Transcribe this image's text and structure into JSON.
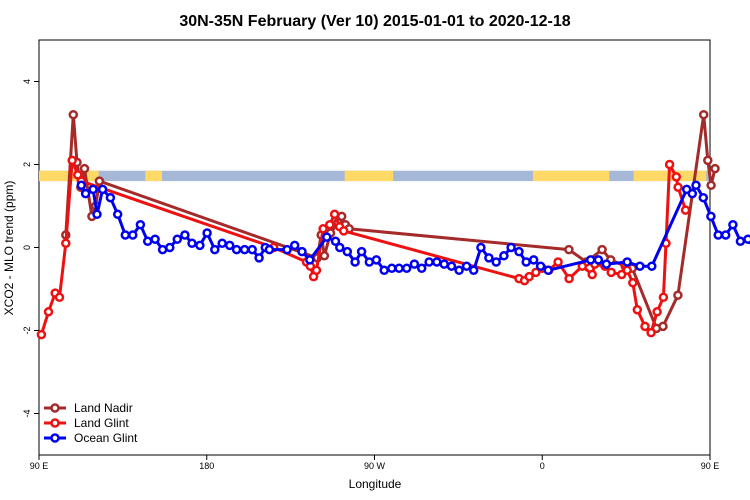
{
  "chart_data": {
    "type": "line",
    "title": "30N-35N February (Ver 10)   2015-01-01 to 2020-12-18",
    "xlabel": "Longitude",
    "ylabel": "XCO2 - MLO trend (ppm)",
    "xlim": [
      90,
      450
    ],
    "ylim": [
      -5,
      5
    ],
    "x_ticks": [
      {
        "value": 90,
        "label": "90 E"
      },
      {
        "value": 180,
        "label": "180"
      },
      {
        "value": 270,
        "label": "90 W"
      },
      {
        "value": 360,
        "label": "0"
      },
      {
        "value": 450,
        "label": "90 E"
      },
      {
        "value": 540,
        "label": "180"
      }
    ],
    "y_ticks": [
      {
        "value": -4,
        "label": "-4"
      },
      {
        "value": -2,
        "label": "-2"
      },
      {
        "value": 0,
        "label": "0"
      },
      {
        "value": 2,
        "label": "2"
      },
      {
        "value": 4,
        "label": "4"
      }
    ],
    "grid": false,
    "legend_position": "bottom-left",
    "land_mask": {
      "y_range": [
        1.6,
        1.85
      ],
      "ocean_color": "#a5b8d8",
      "land_color": "#ffd966",
      "land_segments": [
        [
          90,
          122
        ],
        [
          147,
          156
        ],
        [
          254,
          280
        ],
        [
          355,
          396
        ],
        [
          409,
          448
        ]
      ]
    },
    "series": [
      {
        "name": "Land Nadir",
        "color": "#a52a2a",
        "points": [
          [
            104.4,
            0.3
          ],
          [
            108.4,
            3.2
          ],
          [
            110.4,
            2.05
          ],
          [
            112.4,
            1.45
          ],
          [
            114.4,
            1.9
          ],
          [
            118.4,
            0.75
          ],
          [
            120.4,
            1.0
          ],
          [
            122.4,
            1.6
          ],
          [
            239.3,
            -0.25
          ],
          [
            241.4,
            0.3
          ],
          [
            243.1,
            -0.2
          ],
          [
            246.4,
            0.35
          ],
          [
            250.4,
            0.6
          ],
          [
            252.4,
            0.75
          ],
          [
            254.4,
            0.55
          ],
          [
            256.4,
            0.45
          ],
          [
            374.3,
            -0.05
          ],
          [
            383.7,
            -0.35
          ],
          [
            392.1,
            -0.05
          ],
          [
            396.7,
            -0.3
          ],
          [
            404.5,
            -0.45
          ],
          [
            408.3,
            -0.5
          ],
          [
            421.3,
            -1.95
          ],
          [
            424.8,
            -1.9
          ],
          [
            432.8,
            -1.15
          ],
          [
            446.6,
            3.2
          ],
          [
            448.8,
            2.1
          ],
          [
            450.6,
            1.5
          ],
          [
            452.7,
            1.9
          ]
        ]
      },
      {
        "name": "Land Glint",
        "color": "#ee1111",
        "points": [
          [
            91.3,
            -2.1
          ],
          [
            95.1,
            -1.55
          ],
          [
            98.7,
            -1.1
          ],
          [
            101.0,
            -1.2
          ],
          [
            104.4,
            0.1
          ],
          [
            107.8,
            2.1
          ],
          [
            110.8,
            1.75
          ],
          [
            112.7,
            1.6
          ],
          [
            215.9,
            0.0
          ],
          [
            233.5,
            -0.35
          ],
          [
            235.6,
            -0.45
          ],
          [
            237.3,
            -0.7
          ],
          [
            238.9,
            -0.55
          ],
          [
            242.4,
            0.45
          ],
          [
            246.0,
            0.55
          ],
          [
            248.6,
            0.8
          ],
          [
            251.3,
            0.5
          ],
          [
            253.5,
            0.4
          ],
          [
            347.5,
            -0.75
          ],
          [
            350.5,
            -0.8
          ],
          [
            353.0,
            -0.7
          ],
          [
            356.6,
            -0.6
          ],
          [
            360.0,
            -0.5
          ],
          [
            363.5,
            -0.55
          ],
          [
            368.5,
            -0.35
          ],
          [
            374.4,
            -0.75
          ],
          [
            381.5,
            -0.45
          ],
          [
            386.8,
            -0.65
          ],
          [
            388.2,
            -0.4
          ],
          [
            393.6,
            -0.45
          ],
          [
            397.0,
            -0.6
          ],
          [
            402.6,
            -0.65
          ],
          [
            404.6,
            -0.4
          ],
          [
            405.6,
            -0.55
          ],
          [
            408.6,
            -0.85
          ],
          [
            411.0,
            -1.5
          ],
          [
            415.1,
            -1.9
          ],
          [
            418.4,
            -2.05
          ],
          [
            421.6,
            -1.55
          ],
          [
            425.0,
            -1.2
          ],
          [
            426.4,
            0.1
          ],
          [
            428.3,
            2.0
          ],
          [
            431.9,
            1.7
          ],
          [
            432.9,
            1.45
          ],
          [
            436.9,
            0.9
          ]
        ]
      },
      {
        "name": "Ocean Glint",
        "color": "#0000ee",
        "points": [
          [
            112.7,
            1.5
          ],
          [
            115.0,
            1.3
          ],
          [
            119.0,
            1.4
          ],
          [
            121.1,
            0.8
          ],
          [
            124.1,
            1.4
          ],
          [
            128.3,
            1.2
          ],
          [
            132.2,
            0.8
          ],
          [
            136.3,
            0.3
          ],
          [
            140.3,
            0.3
          ],
          [
            144.4,
            0.55
          ],
          [
            148.3,
            0.15
          ],
          [
            152.3,
            0.2
          ],
          [
            156.3,
            -0.05
          ],
          [
            160.2,
            0.0
          ],
          [
            164.2,
            0.2
          ],
          [
            168.3,
            0.3
          ],
          [
            172.1,
            0.1
          ],
          [
            176.3,
            0.05
          ],
          [
            180.2,
            0.35
          ],
          [
            184.3,
            -0.05
          ],
          [
            188.3,
            0.1
          ],
          [
            192.3,
            0.05
          ],
          [
            196.0,
            -0.05
          ],
          [
            200.3,
            -0.05
          ],
          [
            204.4,
            -0.05
          ],
          [
            208.1,
            -0.25
          ],
          [
            211.4,
            0.0
          ],
          [
            213.6,
            -0.05
          ],
          [
            223.1,
            -0.05
          ],
          [
            227.2,
            0.05
          ],
          [
            231.1,
            -0.1
          ],
          [
            235.3,
            -0.3
          ],
          [
            244.4,
            0.25
          ],
          [
            249.1,
            0.15
          ],
          [
            251.4,
            0.0
          ],
          [
            255.4,
            -0.1
          ],
          [
            259.6,
            -0.35
          ],
          [
            263.1,
            -0.1
          ],
          [
            267.2,
            -0.35
          ],
          [
            271.0,
            -0.3
          ],
          [
            275.2,
            -0.55
          ],
          [
            279.3,
            -0.5
          ],
          [
            283.2,
            -0.5
          ],
          [
            287.3,
            -0.5
          ],
          [
            291.4,
            -0.4
          ],
          [
            295.3,
            -0.5
          ],
          [
            299.3,
            -0.35
          ],
          [
            303.4,
            -0.35
          ],
          [
            307.4,
            -0.4
          ],
          [
            311.3,
            -0.45
          ],
          [
            315.4,
            -0.55
          ],
          [
            319.4,
            -0.45
          ],
          [
            323.2,
            -0.55
          ],
          [
            327.1,
            0.0
          ],
          [
            331.4,
            -0.25
          ],
          [
            335.3,
            -0.35
          ],
          [
            339.4,
            -0.2
          ],
          [
            343.3,
            0.0
          ],
          [
            347.5,
            -0.1
          ],
          [
            351.4,
            -0.35
          ],
          [
            355.4,
            -0.3
          ],
          [
            359.1,
            -0.45
          ],
          [
            363.2,
            -0.55
          ],
          [
            386.0,
            -0.3
          ],
          [
            390.1,
            -0.3
          ],
          [
            394.4,
            -0.4
          ],
          [
            405.6,
            -0.35
          ],
          [
            412.4,
            -0.45
          ],
          [
            418.8,
            -0.45
          ],
          [
            437.5,
            1.4
          ],
          [
            440.5,
            1.3
          ],
          [
            442.5,
            1.5
          ],
          [
            446.4,
            1.2
          ],
          [
            450.5,
            0.75
          ],
          [
            454.4,
            0.3
          ],
          [
            458.4,
            0.3
          ],
          [
            462.3,
            0.55
          ],
          [
            466.3,
            0.15
          ],
          [
            470.4,
            0.2
          ],
          [
            474.3,
            -0.05
          ]
        ]
      }
    ]
  }
}
